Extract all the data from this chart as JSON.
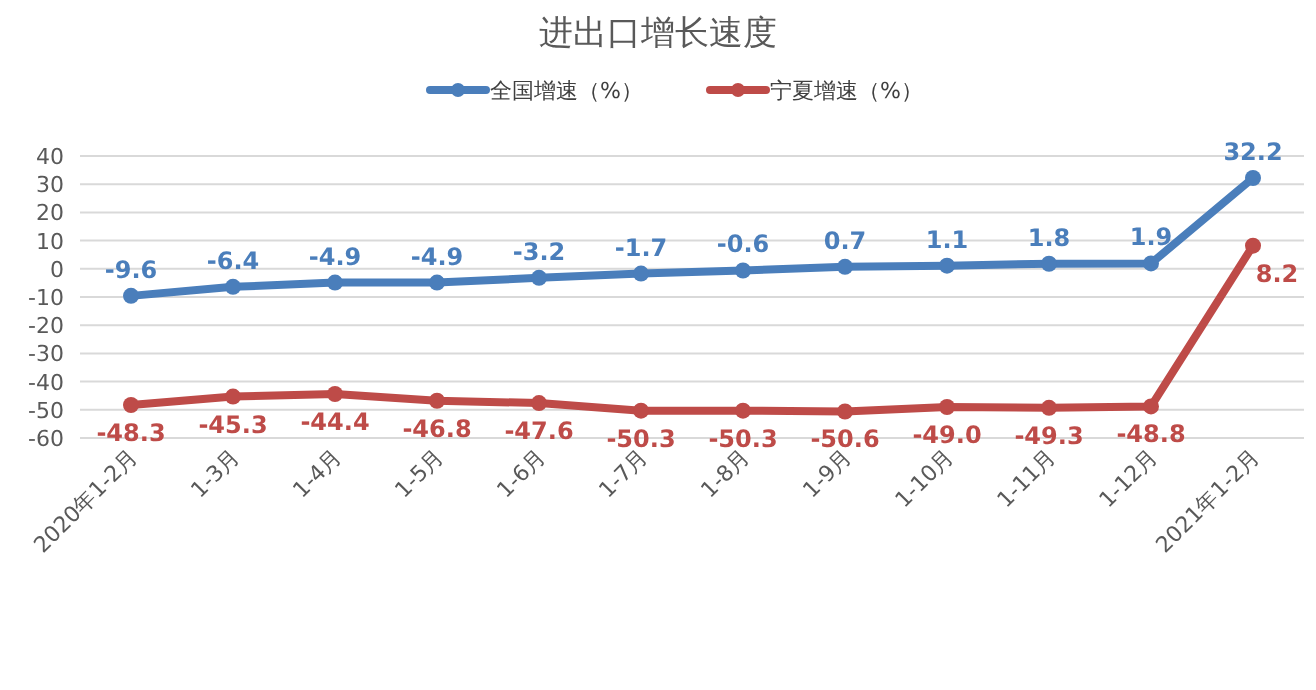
{
  "chart_data": {
    "type": "line",
    "title": "进出口增长速度",
    "categories": [
      "2020年1-2月",
      "1-3月",
      "1-4月",
      "1-5月",
      "1-6月",
      "1-7月",
      "1-8月",
      "1-9月",
      "1-10月",
      "1-11月",
      "1-12月",
      "2021年1-2月"
    ],
    "series": [
      {
        "name": "全国增速（%）",
        "color": "#4a7ebb",
        "values": [
          -9.6,
          -6.4,
          -4.9,
          -4.9,
          -3.2,
          -1.7,
          -0.6,
          0.7,
          1.1,
          1.8,
          1.9,
          32.2
        ],
        "value_labels": [
          "-9.6",
          "-6.4",
          "-4.9",
          "-4.9",
          "-3.2",
          "-1.7",
          "-0.6",
          "0.7",
          "1.1",
          "1.8",
          "1.9",
          "32.2"
        ]
      },
      {
        "name": "宁夏增速（%）",
        "color": "#be4b48",
        "values": [
          -48.3,
          -45.3,
          -44.4,
          -46.8,
          -47.6,
          -50.3,
          -50.3,
          -50.6,
          -49.0,
          -49.3,
          -48.8,
          8.2
        ],
        "value_labels": [
          "-48.3",
          "-45.3",
          "-44.4",
          "-46.8",
          "-47.6",
          "-50.3",
          "-50.3",
          "-50.6",
          "-49.0",
          "-49.3",
          "-48.8",
          "8.2"
        ]
      }
    ],
    "ylim": [
      -60,
      40
    ],
    "yticks": [
      -60,
      -50,
      -40,
      -30,
      -20,
      -10,
      0,
      10,
      20,
      30,
      40
    ],
    "grid": "y",
    "legend": "top",
    "marker": "circle",
    "line_style": "solid"
  }
}
